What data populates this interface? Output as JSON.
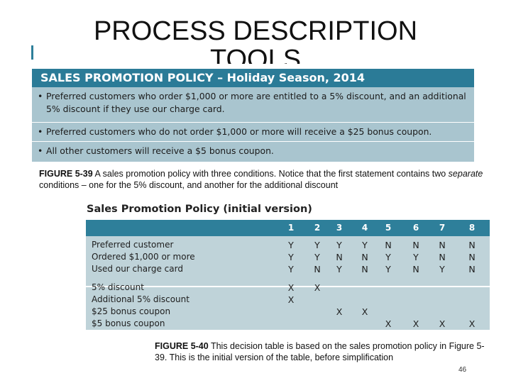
{
  "slide": {
    "title_line1": "PROCESS DESCRIPTION",
    "title_line2": "TOOLS",
    "page_number": "46"
  },
  "policy": {
    "header": "SALES PROMOTION POLICY  –  Holiday Season, 2014",
    "rules": [
      "Preferred customers who order $1,000 or more are entitled to a 5% discount, and an additional 5% discount if they use our charge card.",
      "Preferred customers who do not order $1,000 or more will receive a $25 bonus coupon.",
      "All other customers will receive a $5 bonus coupon."
    ]
  },
  "caption1": {
    "label": "FIGURE 5-39",
    "text_before": " A sales promotion policy with three conditions. Notice that the first statement contains two ",
    "emphasis": "separate",
    "text_after": " conditions – one for the 5% discount, and another for the additional discount"
  },
  "decision_table": {
    "title": "Sales Promotion Policy (initial version)",
    "columns": [
      "1",
      "2",
      "3",
      "4",
      "5",
      "6",
      "7",
      "8"
    ],
    "conditions": [
      {
        "label": "Preferred customer",
        "values": [
          "Y",
          "Y",
          "Y",
          "Y",
          "N",
          "N",
          "N",
          "N"
        ]
      },
      {
        "label": "Ordered $1,000 or more",
        "values": [
          "Y",
          "Y",
          "N",
          "N",
          "Y",
          "Y",
          "N",
          "N"
        ]
      },
      {
        "label": "Used our charge card",
        "values": [
          "Y",
          "N",
          "Y",
          "N",
          "Y",
          "N",
          "Y",
          "N"
        ]
      }
    ],
    "actions": [
      {
        "label": "5% discount",
        "values": [
          "X",
          "X",
          "",
          "",
          "",
          "",
          "",
          ""
        ]
      },
      {
        "label": "Additional 5% discount",
        "values": [
          "X",
          "",
          "",
          "",
          "",
          "",
          "",
          ""
        ]
      },
      {
        "label": "$25 bonus coupon",
        "values": [
          "",
          "",
          "X",
          "X",
          "",
          "",
          "",
          ""
        ]
      },
      {
        "label": "$5 bonus coupon",
        "values": [
          "",
          "",
          "",
          "",
          "X",
          "X",
          "X",
          "X"
        ]
      }
    ]
  },
  "caption2": {
    "label": "FIGURE 5-40",
    "text": " This decision table is based on the sales promotion policy in Figure 5-39. This is the initial version of the table, before simplification"
  },
  "colors": {
    "header_teal": "#2b7b97",
    "policy_bg": "#a9c5cf",
    "table_bg": "#bfd3d9"
  }
}
